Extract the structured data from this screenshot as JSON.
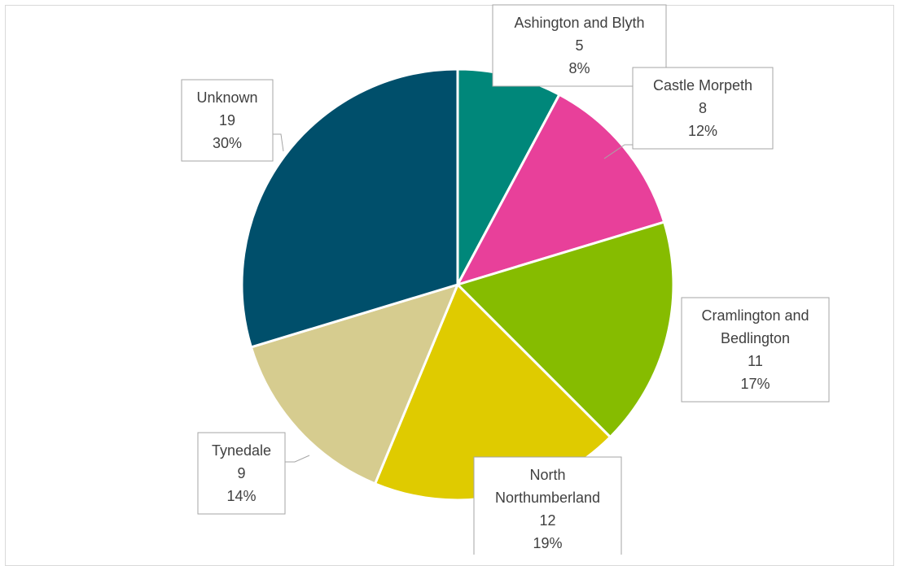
{
  "chart_data": {
    "type": "pie",
    "categories": [
      "Ashington and Blyth",
      "Castle Morpeth",
      "Cramlington and Bedlington",
      "North Northumberland",
      "Tynedale",
      "Unknown"
    ],
    "values": [
      5,
      8,
      11,
      12,
      9,
      19
    ],
    "percent_labels": [
      "8%",
      "12%",
      "17%",
      "19%",
      "14%",
      "30%"
    ],
    "label_lines": [
      [
        "Ashington and Blyth"
      ],
      [
        "Castle Morpeth"
      ],
      [
        "Cramlington and",
        "Bedlington"
      ],
      [
        "North",
        "Northumberland"
      ],
      [
        "Tynedale"
      ],
      [
        "Unknown"
      ]
    ],
    "colors": [
      "#00877a",
      "#e8409a",
      "#86bc00",
      "#dfcb00",
      "#d6cc8f",
      "#004f6b"
    ],
    "title": "",
    "legend": "none",
    "data_labels": "callouts with category, value and percentage"
  }
}
